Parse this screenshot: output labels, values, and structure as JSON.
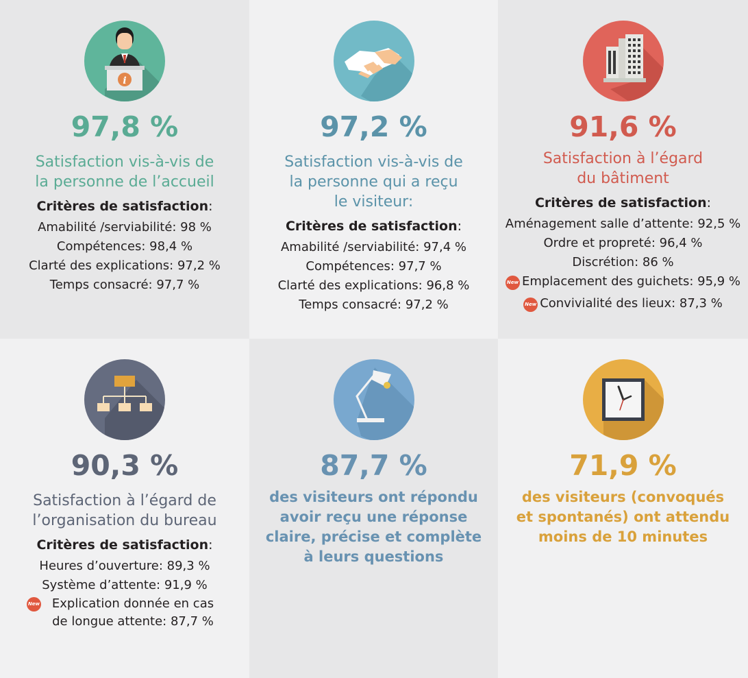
{
  "panels": [
    {
      "icon": "reception-desk-icon",
      "color": "#5aab94",
      "percent": "97,8 %",
      "subtitle_lines": [
        "Satisfaction vis-à-vis de",
        "la personne de l’accueil"
      ],
      "criteria_title": "Critères de satisfaction",
      "criteria": [
        {
          "text": "Amabilité /serviabilité: 98 %",
          "new": false
        },
        {
          "text": "Compétences: 98,4 %",
          "new": false
        },
        {
          "text": "Clarté des explications: 97,2 %",
          "new": false
        },
        {
          "text": "Temps consacré: 97,7 %",
          "new": false
        }
      ]
    },
    {
      "icon": "handshake-icon",
      "color": "#5b93a9",
      "percent": "97,2 %",
      "subtitle_lines": [
        "Satisfaction vis-à-vis de",
        "la personne qui a reçu",
        "le visiteur:"
      ],
      "criteria_title": "Critères de satisfaction",
      "criteria": [
        {
          "text": "Amabilité /serviabilité: 97,4 %",
          "new": false
        },
        {
          "text": "Compétences: 97,7 %",
          "new": false
        },
        {
          "text": "Clarté des explications: 96,8 %",
          "new": false
        },
        {
          "text": "Temps consacré: 97,2 %",
          "new": false
        }
      ]
    },
    {
      "icon": "building-icon",
      "color": "#d15b4f",
      "percent": "91,6 %",
      "subtitle_lines": [
        "Satisfaction à l’égard",
        "du bâtiment"
      ],
      "criteria_title": "Critères de satisfaction",
      "criteria": [
        {
          "text": "Aménagement salle d’attente: 92,5 %",
          "new": false
        },
        {
          "text": "Ordre et propreté: 96,4 %",
          "new": false
        },
        {
          "text": "Discrétion: 86 %",
          "new": false
        },
        {
          "text": "Emplacement des guichets: 95,9 %",
          "new": true
        },
        {
          "text": "Convivialité des lieux: 87,3 %",
          "new": true
        }
      ]
    },
    {
      "icon": "org-chart-icon",
      "color": "#5d6576",
      "percent": "90,3 %",
      "subtitle_lines": [
        "Satisfaction à l’égard de",
        "l’organisation du bureau"
      ],
      "criteria_title": "Critères de satisfaction",
      "criteria": [
        {
          "text": "Heures d’ouverture: 89,3 %",
          "new": false
        },
        {
          "text": "Système d’attente: 91,9 %",
          "new": false
        },
        {
          "text": "Explication donnée en cas de longue attente: 87,7 %",
          "new": true
        }
      ]
    },
    {
      "icon": "desk-lamp-icon",
      "color": "#6892b1",
      "percent": "87,7 %",
      "subtitle_lines": [
        "des visiteurs ont répondu",
        "avoir reçu une réponse",
        "claire, précise et complète",
        "à leurs questions"
      ]
    },
    {
      "icon": "clock-icon",
      "color": "#d9a13b",
      "percent": "71,9 %",
      "subtitle_lines": [
        "des visiteurs (convoqués",
        "et spontanés) ont attendu",
        "moins de 10 minutes"
      ]
    }
  ],
  "new_badge_label": "New",
  "colon": ":"
}
